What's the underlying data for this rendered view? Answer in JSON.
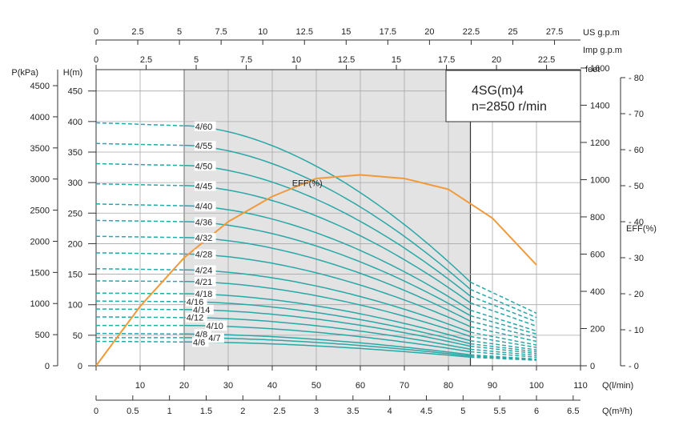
{
  "chart_data": {
    "type": "line",
    "title_box": {
      "line1": "4SG(m)4",
      "line2": "n=2850 r/min"
    },
    "units": {
      "q_lmin": "Q(l/min)",
      "q_m3h": "Q(m³/h)",
      "us_gpm": "US g.p.m",
      "imp_gpm": "Imp g.p.m",
      "head_m": "H(m)",
      "pressure_kpa": "P(kPa)",
      "feet": "feet",
      "eff": "EFF(%)"
    },
    "axes": {
      "q_lmin": {
        "min": 0,
        "max": 110,
        "ticks": [
          0,
          10,
          20,
          30,
          40,
          50,
          60,
          70,
          80,
          90,
          100,
          110
        ]
      },
      "q_m3h": {
        "min": 0,
        "max": 6.6,
        "ticks": [
          0,
          0.5,
          1,
          1.5,
          2,
          2.5,
          3,
          3.5,
          4,
          4.5,
          5,
          5.5,
          6,
          6.5
        ],
        "tick_labels": [
          "0",
          "0.5",
          "1",
          "1.5",
          "2",
          "2.5",
          "3",
          "3.5",
          "4",
          "4.5",
          "5",
          "5.5",
          "6",
          "6.5"
        ]
      },
      "us_gpm": {
        "min": 0,
        "max": 29.06,
        "ticks": [
          0,
          2.5,
          5,
          7.5,
          10,
          12.5,
          15,
          17.5,
          20,
          22.5,
          25,
          27.5
        ],
        "tick_labels": [
          "0",
          "2.5",
          "5",
          "7.5",
          "10",
          "12.5",
          "15",
          "17.5",
          "20",
          "22.5",
          "25",
          "27.5"
        ]
      },
      "imp_gpm": {
        "min": 0,
        "max": 24.2,
        "ticks": [
          0,
          2.5,
          5,
          7.5,
          10,
          12.5,
          15,
          17.5,
          20,
          22.5
        ],
        "tick_labels": [
          "0",
          "2.5",
          "5",
          "7.5",
          "10",
          "12.5",
          "15",
          "17.5",
          "20",
          "22.5"
        ]
      },
      "head_m": {
        "min": 0,
        "max": 485,
        "ticks": [
          0,
          50,
          100,
          150,
          200,
          250,
          300,
          350,
          400,
          450
        ]
      },
      "pressure_kpa": {
        "ticks": [
          0,
          500,
          1000,
          1500,
          2000,
          2500,
          3000,
          3500,
          4000,
          4500
        ]
      },
      "feet": {
        "ticks": [
          0,
          200,
          400,
          600,
          800,
          1000,
          1200,
          1400,
          1600
        ]
      },
      "eff": {
        "min": 0,
        "max": 80,
        "ticks": [
          0,
          10,
          20,
          30,
          40,
          50,
          60,
          70,
          80
        ]
      }
    },
    "recommended_range_lmin": [
      20,
      85
    ],
    "series": [
      {
        "name": "4/60",
        "h0": 398,
        "h20": 393,
        "h85": 137,
        "h100": 86
      },
      {
        "name": "4/55",
        "h0": 364,
        "h20": 361,
        "h85": 125,
        "h100": 79
      },
      {
        "name": "4/50",
        "h0": 331,
        "h20": 328,
        "h85": 114,
        "h100": 72
      },
      {
        "name": "4/45",
        "h0": 298,
        "h20": 295,
        "h85": 103,
        "h100": 65
      },
      {
        "name": "4/40",
        "h0": 265,
        "h20": 262,
        "h85": 91,
        "h100": 57
      },
      {
        "name": "4/36",
        "h0": 238,
        "h20": 236,
        "h85": 82,
        "h100": 52
      },
      {
        "name": "4/32",
        "h0": 212,
        "h20": 210,
        "h85": 73,
        "h100": 46
      },
      {
        "name": "4/28",
        "h0": 185,
        "h20": 183,
        "h85": 64,
        "h100": 40
      },
      {
        "name": "4/24",
        "h0": 159,
        "h20": 157,
        "h85": 55,
        "h100": 34
      },
      {
        "name": "4/21",
        "h0": 139,
        "h20": 138,
        "h85": 48,
        "h100": 30
      },
      {
        "name": "4/18",
        "h0": 119,
        "h20": 118,
        "h85": 41,
        "h100": 26
      },
      {
        "name": "4/16",
        "h0": 106,
        "h20": 105,
        "h85": 36,
        "h100": 23
      },
      {
        "name": "4/14",
        "h0": 93,
        "h20": 92,
        "h85": 32,
        "h100": 20
      },
      {
        "name": "4/12",
        "h0": 80,
        "h20": 79,
        "h85": 27,
        "h100": 17
      },
      {
        "name": "4/10",
        "h0": 66,
        "h20": 66,
        "h85": 23,
        "h100": 14
      },
      {
        "name": "4/8",
        "h0": 53,
        "h20": 52,
        "h85": 18,
        "h100": 11
      },
      {
        "name": "4/7",
        "h0": 46,
        "h20": 46,
        "h85": 16,
        "h100": 10
      },
      {
        "name": "4/6",
        "h0": 40,
        "h20": 39,
        "h85": 14,
        "h100": 9
      }
    ],
    "label_positions_lmin": [
      22.5,
      22.5,
      22.5,
      22.5,
      22.5,
      22.5,
      22.5,
      22.5,
      22.5,
      22.5,
      22.5,
      20.5,
      22.0,
      20.5,
      25.0,
      22.5,
      25.5,
      22.0
    ],
    "efficiency": {
      "name": "EFF(%)",
      "q": [
        0,
        10,
        20,
        30,
        40,
        50,
        60,
        70,
        80,
        90,
        100
      ],
      "eff": [
        0,
        16.5,
        30,
        40,
        47,
        52,
        53,
        52,
        49,
        41,
        28
      ]
    }
  }
}
